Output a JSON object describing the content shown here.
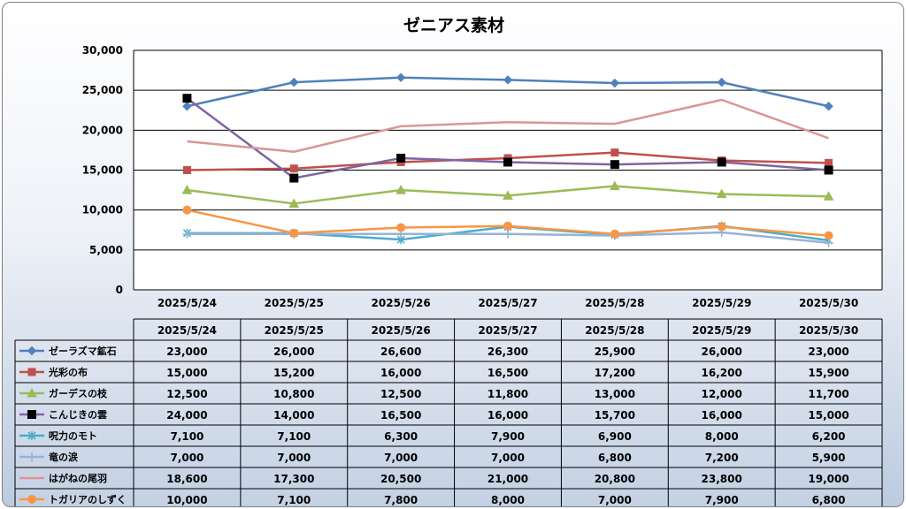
{
  "chart_data": {
    "type": "line",
    "title": "ゼニアス素材",
    "categories": [
      "2025/5/24",
      "2025/5/25",
      "2025/5/26",
      "2025/5/27",
      "2025/5/28",
      "2025/5/29",
      "2025/5/30"
    ],
    "ylim": [
      0,
      30000
    ],
    "yticks": [
      "0",
      "5,000",
      "10,000",
      "15,000",
      "20,000",
      "25,000",
      "30,000"
    ],
    "grid": true,
    "legend": "data-table-bottom",
    "series": [
      {
        "name": "ゼーラズマ鉱石",
        "color": "#4f81bd",
        "marker": "diamond",
        "values": [
          23000,
          26000,
          26600,
          26300,
          25900,
          26000,
          23000
        ],
        "labels": [
          "23,000",
          "26,000",
          "26,600",
          "26,300",
          "25,900",
          "26,000",
          "23,000"
        ]
      },
      {
        "name": "光彩の布",
        "color": "#c0504d",
        "marker": "square",
        "values": [
          15000,
          15200,
          16000,
          16500,
          17200,
          16200,
          15900
        ],
        "labels": [
          "15,000",
          "15,200",
          "16,000",
          "16,500",
          "17,200",
          "16,200",
          "15,900"
        ]
      },
      {
        "name": "ガーデスの枝",
        "color": "#9bbb59",
        "marker": "triangle",
        "values": [
          12500,
          10800,
          12500,
          11800,
          13000,
          12000,
          11700
        ],
        "labels": [
          "12,500",
          "10,800",
          "12,500",
          "11,800",
          "13,000",
          "12,000",
          "11,700"
        ]
      },
      {
        "name": "こんじきの雲",
        "color": "#8064a2",
        "marker": "square-black",
        "values": [
          24000,
          14000,
          16500,
          16000,
          15700,
          16000,
          15000
        ],
        "labels": [
          "24,000",
          "14,000",
          "16,500",
          "16,000",
          "15,700",
          "16,000",
          "15,000"
        ]
      },
      {
        "name": "呪力のモト",
        "color": "#4bacc6",
        "marker": "star",
        "values": [
          7100,
          7100,
          6300,
          7900,
          6900,
          8000,
          6200
        ],
        "labels": [
          "7,100",
          "7,100",
          "6,300",
          "7,900",
          "6,900",
          "8,000",
          "6,200"
        ]
      },
      {
        "name": "竜の涙",
        "color": "#95b3d7",
        "marker": "plus",
        "values": [
          7000,
          7000,
          7000,
          7000,
          6800,
          7200,
          5900
        ],
        "labels": [
          "7,000",
          "7,000",
          "7,000",
          "7,000",
          "6,800",
          "7,200",
          "5,900"
        ]
      },
      {
        "name": "はがねの尾羽",
        "color": "#d99694",
        "marker": "none",
        "values": [
          18600,
          17300,
          20500,
          21000,
          20800,
          23800,
          19000
        ],
        "labels": [
          "18,600",
          "17,300",
          "20,500",
          "21,000",
          "20,800",
          "23,800",
          "19,000"
        ]
      },
      {
        "name": "トガリアのしずく",
        "color": "#f79646",
        "marker": "circle",
        "values": [
          10000,
          7100,
          7800,
          8000,
          7000,
          7900,
          6800
        ],
        "labels": [
          "10,000",
          "7,100",
          "7,800",
          "8,000",
          "7,000",
          "7,900",
          "6,800"
        ]
      }
    ]
  }
}
